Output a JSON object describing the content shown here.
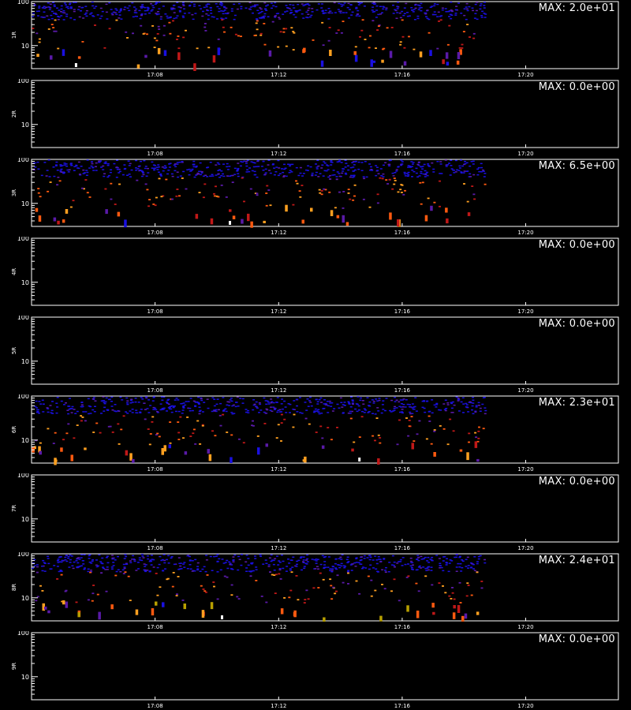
{
  "figure": {
    "footer_text": ""
  },
  "chart_data": [
    {
      "type": "heatmap",
      "panel_label": "1R",
      "max_label": "MAX: 2.0e+01",
      "max_value": 20.0,
      "y_scale": "log",
      "ylim": [
        3,
        100
      ],
      "y_tick_labels": [
        "100",
        "10"
      ],
      "x_tick_labels": [
        "17:08",
        "17:12",
        "17:16",
        "17:20"
      ],
      "xlim": [
        "17:04",
        "17:23"
      ],
      "data_extent_x": [
        "17:04",
        "17:18:40"
      ],
      "pattern": "dense",
      "seed": 11
    },
    {
      "type": "heatmap",
      "panel_label": "2R",
      "max_label": "MAX: 0.0e+00",
      "max_value": 0.0,
      "y_scale": "log",
      "ylim": [
        3,
        100
      ],
      "y_tick_labels": [
        "100",
        "10"
      ],
      "x_tick_labels": [
        "17:08",
        "17:12",
        "17:16",
        "17:20"
      ],
      "xlim": [
        "17:04",
        "17:23"
      ],
      "pattern": "empty",
      "seed": 0
    },
    {
      "type": "heatmap",
      "panel_label": "3R",
      "max_label": "MAX: 6.5e+00",
      "max_value": 6.5,
      "y_scale": "log",
      "ylim": [
        3,
        100
      ],
      "y_tick_labels": [
        "100",
        "10"
      ],
      "x_tick_labels": [
        "17:08",
        "17:12",
        "17:16",
        "17:20"
      ],
      "xlim": [
        "17:04",
        "17:23"
      ],
      "data_extent_x": [
        "17:04",
        "17:18:40"
      ],
      "pattern": "dense",
      "seed": 37
    },
    {
      "type": "heatmap",
      "panel_label": "4R",
      "max_label": "MAX: 0.0e+00",
      "max_value": 0.0,
      "y_scale": "log",
      "ylim": [
        3,
        100
      ],
      "y_tick_labels": [
        "100",
        "10"
      ],
      "x_tick_labels": [
        "17:08",
        "17:12",
        "17:16",
        "17:20"
      ],
      "xlim": [
        "17:04",
        "17:23"
      ],
      "pattern": "empty",
      "seed": 0
    },
    {
      "type": "heatmap",
      "panel_label": "5R",
      "max_label": "MAX: 0.0e+00",
      "max_value": 0.0,
      "y_scale": "log",
      "ylim": [
        3,
        100
      ],
      "y_tick_labels": [
        "100",
        "10"
      ],
      "x_tick_labels": [
        "17:08",
        "17:12",
        "17:16",
        "17:20"
      ],
      "xlim": [
        "17:04",
        "17:23"
      ],
      "pattern": "empty",
      "seed": 0
    },
    {
      "type": "heatmap",
      "panel_label": "6R",
      "max_label": "MAX: 2.3e+01",
      "max_value": 23.0,
      "y_scale": "log",
      "ylim": [
        3,
        100
      ],
      "y_tick_labels": [
        "100",
        "10"
      ],
      "x_tick_labels": [
        "17:08",
        "17:12",
        "17:16",
        "17:20"
      ],
      "xlim": [
        "17:04",
        "17:23"
      ],
      "data_extent_x": [
        "17:04",
        "17:18:40"
      ],
      "pattern": "dense",
      "seed": 53
    },
    {
      "type": "heatmap",
      "panel_label": "7R",
      "max_label": "MAX: 0.0e+00",
      "max_value": 0.0,
      "y_scale": "log",
      "ylim": [
        3,
        100
      ],
      "y_tick_labels": [
        "100",
        "10"
      ],
      "x_tick_labels": [
        "17:08",
        "17:12",
        "17:16",
        "17:20"
      ],
      "xlim": [
        "17:04",
        "17:23"
      ],
      "pattern": "empty",
      "seed": 0
    },
    {
      "type": "heatmap",
      "panel_label": "8R",
      "max_label": "MAX: 2.4e+01",
      "max_value": 24.0,
      "y_scale": "log",
      "ylim": [
        3,
        100
      ],
      "y_tick_labels": [
        "100",
        "10"
      ],
      "x_tick_labels": [
        "17:08",
        "17:12",
        "17:16",
        "17:20"
      ],
      "xlim": [
        "17:04",
        "17:23"
      ],
      "data_extent_x": [
        "17:04",
        "17:18:40"
      ],
      "pattern": "dense",
      "seed": 71
    },
    {
      "type": "heatmap",
      "panel_label": "9R",
      "max_label": "MAX: 0.0e+00",
      "max_value": 0.0,
      "y_scale": "log",
      "ylim": [
        3,
        100
      ],
      "y_tick_labels": [
        "100",
        "10"
      ],
      "x_tick_labels": [
        "17:08",
        "17:12",
        "17:16",
        "17:20"
      ],
      "xlim": [
        "17:04",
        "17:23"
      ],
      "pattern": "empty",
      "seed": 0
    }
  ],
  "colors": {
    "background": "#000000",
    "axis": "#ffffff",
    "palette_low": "#1a10e0",
    "palette_mid_low": "#5a1aa8",
    "palette_mid": "#c01818",
    "palette_mid_high": "#ff5a10",
    "palette_high": "#ffa020",
    "palette_max": "#ffffff",
    "palette_olive": "#b8a000"
  }
}
